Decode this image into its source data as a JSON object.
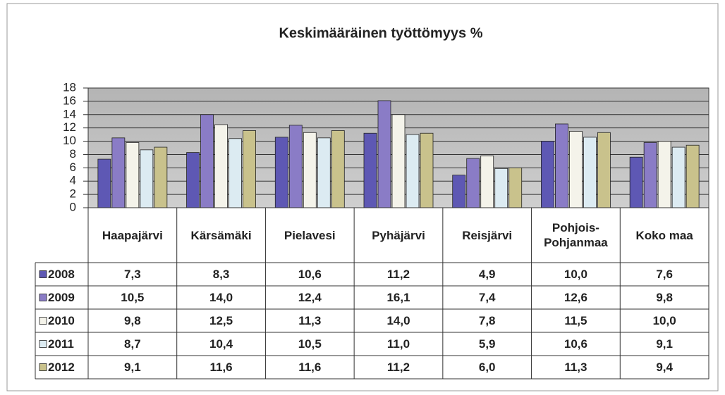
{
  "chart_data": {
    "type": "bar",
    "title": "Keskimääräinen työttömyys %",
    "categories": [
      "Haapajärvi",
      "Kärsämäki",
      "Pielavesi",
      "Pyhäjärvi",
      "Reisjärvi",
      "Pohjois-Pohjanmaa",
      "Koko maa"
    ],
    "series": [
      {
        "name": "2008",
        "color": "#5e58b4",
        "values": [
          7.3,
          8.3,
          10.6,
          11.2,
          4.9,
          10.0,
          7.6
        ],
        "value_labels": [
          "7,3",
          "8,3",
          "10,6",
          "11,2",
          "4,9",
          "10,0",
          "7,6"
        ]
      },
      {
        "name": "2009",
        "color": "#8a7cc6",
        "values": [
          10.5,
          14.0,
          12.4,
          16.1,
          7.4,
          12.6,
          9.8
        ],
        "value_labels": [
          "10,5",
          "14,0",
          "12,4",
          "16,1",
          "7,4",
          "12,6",
          "9,8"
        ]
      },
      {
        "name": "2010",
        "color": "#f4f3ea",
        "values": [
          9.8,
          12.5,
          11.3,
          14.0,
          7.8,
          11.5,
          10.0
        ],
        "value_labels": [
          "9,8",
          "12,5",
          "11,3",
          "14,0",
          "7,8",
          "11,5",
          "10,0"
        ]
      },
      {
        "name": "2011",
        "color": "#dcebf2",
        "values": [
          8.7,
          10.4,
          10.5,
          11.0,
          5.9,
          10.6,
          9.1
        ],
        "value_labels": [
          "8,7",
          "10,4",
          "10,5",
          "11,0",
          "5,9",
          "10,6",
          "9,1"
        ]
      },
      {
        "name": "2012",
        "color": "#c9c28c",
        "values": [
          9.1,
          11.6,
          11.6,
          11.2,
          6.0,
          11.3,
          9.4
        ],
        "value_labels": [
          "9,1",
          "11,6",
          "11,6",
          "11,2",
          "6,0",
          "11,3",
          "9,4"
        ]
      }
    ],
    "ylim": [
      0,
      18
    ],
    "yticks": [
      0,
      2,
      4,
      6,
      8,
      10,
      12,
      14,
      16,
      18
    ],
    "grid": true
  }
}
